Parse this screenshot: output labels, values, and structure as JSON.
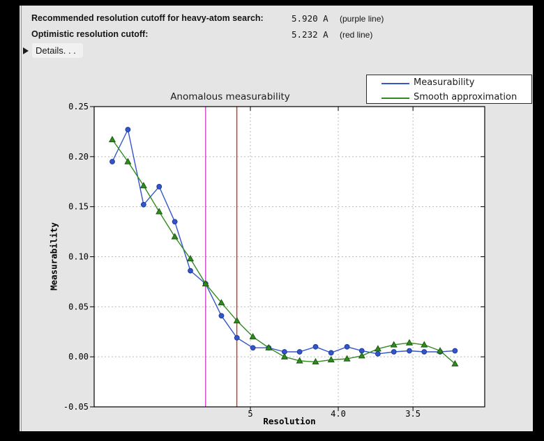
{
  "header": {
    "row1": {
      "label": "Recommended resolution cutoff for heavy-atom search:",
      "value": "5.920 A",
      "note": "(purple line)"
    },
    "row2": {
      "label": "Optimistic resolution cutoff:",
      "value": "5.232 A",
      "note": "(red line)"
    },
    "details": {
      "label": "Details. . ."
    }
  },
  "chart_data": {
    "type": "line",
    "title": "Anomalous measurability",
    "xlabel": "Resolution",
    "ylabel": "Measurability",
    "grid": true,
    "x_axis": {
      "scale": "inverse_d_squared",
      "s2_range": [
        0.0,
        0.1
      ],
      "ticks": [
        {
          "label": "5",
          "d": 5.0
        },
        {
          "label": "4.0",
          "d": 4.0
        },
        {
          "label": "3.5",
          "d": 3.5
        }
      ]
    },
    "y_axis": {
      "range": [
        -0.05,
        0.25
      ],
      "ticks": [
        {
          "label": "0.25",
          "value": 0.25
        },
        {
          "label": "0.20",
          "value": 0.2
        },
        {
          "label": "0.15",
          "value": 0.15
        },
        {
          "label": "0.10",
          "value": 0.1
        },
        {
          "label": "0.05",
          "value": 0.05
        },
        {
          "label": "0.00",
          "value": 0.0
        },
        {
          "label": "-0.05",
          "value": -0.05
        }
      ]
    },
    "resolution_bins_A": [
      14.68,
      10.76,
      8.89,
      7.75,
      6.96,
      6.37,
      5.92,
      5.54,
      5.23,
      4.96,
      4.73,
      4.53,
      4.36,
      4.2,
      4.06,
      3.93,
      3.82,
      3.71,
      3.61,
      3.52,
      3.44,
      3.36,
      3.29
    ],
    "series": [
      {
        "name": "Measurability",
        "marker": "circle",
        "color": "#3355cc",
        "marker_edge": "#1f3a99",
        "values": [
          0.195,
          0.227,
          0.152,
          0.17,
          0.135,
          0.086,
          0.073,
          0.041,
          0.019,
          0.009,
          0.009,
          0.005,
          0.005,
          0.01,
          0.004,
          0.01,
          0.006,
          0.003,
          0.005,
          0.006,
          0.005,
          0.005,
          0.006
        ]
      },
      {
        "name": "Smooth approximation",
        "marker": "triangle",
        "color": "#2f8b1e",
        "marker_edge": "#1c5a12",
        "values": [
          0.217,
          0.195,
          0.171,
          0.145,
          0.12,
          0.098,
          0.073,
          0.054,
          0.036,
          0.02,
          0.009,
          0.0,
          -0.004,
          -0.005,
          -0.003,
          -0.002,
          0.001,
          0.008,
          0.012,
          0.014,
          0.012,
          0.006,
          -0.007
        ]
      }
    ],
    "vlines": [
      {
        "name": "heavy-atom-cutoff",
        "d": 5.92,
        "color": "#cc44cc"
      },
      {
        "name": "optimistic-cutoff",
        "d": 5.232,
        "color": "#cc3311"
      }
    ],
    "legend_position": "top-right",
    "style": {
      "grid_color": "#b8b8b8",
      "axis_color": "#000000",
      "plot_bg": "#ffffff",
      "panel_bg": "#e5e5e5"
    }
  }
}
